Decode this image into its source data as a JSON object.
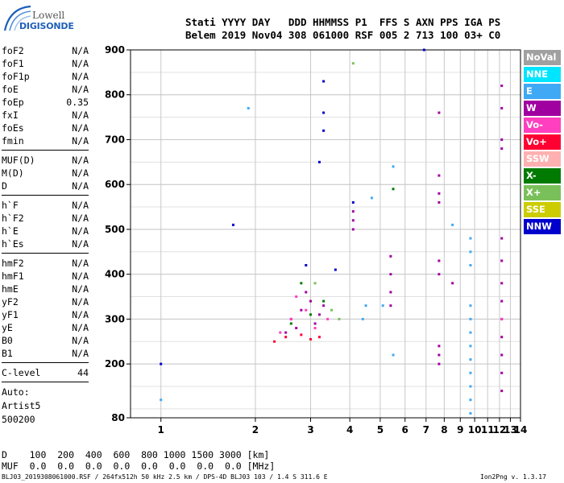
{
  "logo": {
    "brand": "Lowell",
    "product": "DIGISONDE"
  },
  "header": {
    "line1": "Stati YYYY DAY   DDD HHMMSS P1  FFS S AXN PPS IGA PS",
    "line2": "Belem 2019 Nov04 308 061000 RSF 005 2 713 100 03+ C0"
  },
  "params": [
    {
      "name": "foF2",
      "value": "N/A"
    },
    {
      "name": "foF1",
      "value": "N/A"
    },
    {
      "name": "foF1p",
      "value": "N/A"
    },
    {
      "name": "foE",
      "value": "N/A"
    },
    {
      "name": "foEp",
      "value": "0.35"
    },
    {
      "name": "fxI",
      "value": "N/A"
    },
    {
      "name": "foEs",
      "value": "N/A"
    },
    {
      "name": "fmin",
      "value": "N/A"
    },
    {
      "name": "MUF(D)",
      "value": "N/A"
    },
    {
      "name": "M(D)",
      "value": "N/A"
    },
    {
      "name": "D",
      "value": "N/A"
    },
    {
      "name": "h`F",
      "value": "N/A"
    },
    {
      "name": "h`F2",
      "value": "N/A"
    },
    {
      "name": "h`E",
      "value": "N/A"
    },
    {
      "name": "h`Es",
      "value": "N/A"
    },
    {
      "name": "hmF2",
      "value": "N/A"
    },
    {
      "name": "hmF1",
      "value": "N/A"
    },
    {
      "name": "hmE",
      "value": "N/A"
    },
    {
      "name": "yF2",
      "value": "N/A"
    },
    {
      "name": "yF1",
      "value": "N/A"
    },
    {
      "name": "yE",
      "value": "N/A"
    },
    {
      "name": "B0",
      "value": "N/A"
    },
    {
      "name": "B1",
      "value": "N/A"
    },
    {
      "name": "C-level",
      "value": "44"
    }
  ],
  "auto": {
    "line1": "Auto:",
    "line2": "Artist5",
    "line3": "500200"
  },
  "legend": [
    {
      "label": "NoVal",
      "color": "#a0a0a0"
    },
    {
      "label": "NNE",
      "color": "#00e5ff"
    },
    {
      "label": "E",
      "color": "#3fa9f5"
    },
    {
      "label": "W",
      "color": "#a000a0"
    },
    {
      "label": "Vo-",
      "color": "#ff3fbf"
    },
    {
      "label": "Vo+",
      "color": "#ff0033"
    },
    {
      "label": "SSW",
      "color": "#ffb0b0"
    },
    {
      "label": "X-",
      "color": "#007a00"
    },
    {
      "label": "X+",
      "color": "#7ac05a"
    },
    {
      "label": "SSE",
      "color": "#cccc00"
    },
    {
      "label": "NNW",
      "color": "#0000cc"
    }
  ],
  "bottom": {
    "d_row": "D    100  200  400  600  800 1000 1500 3000 [km]",
    "muf_row": "MUF  0.0  0.0  0.0  0.0  0.0  0.0  0.0  0.0 [MHz]"
  },
  "footer": {
    "left": "BLJ03_2019308061000.RSF / 264fx512h 50 kHz 2.5 km / DPS-4D BLJ03 103 / 1.4 S 311.6 E",
    "right": "Ion2Png v. 1.3.17"
  },
  "chart_data": {
    "type": "scatter",
    "title": "",
    "xlabel": "",
    "ylabel": "",
    "xlim": [
      0.8,
      14
    ],
    "ylim": [
      80,
      900
    ],
    "x_ticks": [
      1,
      2,
      3,
      4,
      5,
      6,
      7,
      8,
      9,
      10,
      11,
      12,
      13,
      14
    ],
    "y_ticks": [
      80,
      200,
      300,
      400,
      500,
      600,
      700,
      800,
      900
    ],
    "grid": true,
    "legend_position": "right",
    "notes_series": "echo clusters estimated from image",
    "series": [
      {
        "name": "W",
        "points": [
          [
            2.6,
            300
          ],
          [
            2.8,
            320
          ],
          [
            3.0,
            340
          ],
          [
            2.7,
            280
          ],
          [
            3.1,
            290
          ],
          [
            2.5,
            270
          ],
          [
            3.2,
            310
          ],
          [
            2.9,
            360
          ],
          [
            3.3,
            330
          ],
          [
            4.1,
            520
          ],
          [
            4.1,
            540
          ],
          [
            4.1,
            500
          ],
          [
            5.4,
            440
          ],
          [
            5.4,
            400
          ],
          [
            5.4,
            360
          ],
          [
            5.4,
            330
          ],
          [
            7.7,
            620
          ],
          [
            7.7,
            580
          ],
          [
            7.7,
            560
          ],
          [
            7.7,
            430
          ],
          [
            7.7,
            400
          ],
          [
            7.7,
            240
          ],
          [
            7.7,
            220
          ],
          [
            7.7,
            200
          ],
          [
            12.2,
            480
          ],
          [
            12.2,
            430
          ],
          [
            12.2,
            380
          ],
          [
            12.2,
            340
          ],
          [
            12.2,
            300
          ],
          [
            12.2,
            260
          ],
          [
            12.2,
            220
          ],
          [
            12.2,
            180
          ],
          [
            12.2,
            140
          ],
          [
            12.2,
            700
          ],
          [
            12.2,
            680
          ],
          [
            12.2,
            820
          ],
          [
            12.2,
            770
          ],
          [
            7.7,
            760
          ],
          [
            8.5,
            380
          ]
        ]
      },
      {
        "name": "E",
        "points": [
          [
            9.7,
            480
          ],
          [
            9.7,
            450
          ],
          [
            9.7,
            420
          ],
          [
            9.7,
            330
          ],
          [
            9.7,
            300
          ],
          [
            9.7,
            270
          ],
          [
            9.7,
            240
          ],
          [
            9.7,
            210
          ],
          [
            9.7,
            180
          ],
          [
            9.7,
            150
          ],
          [
            9.7,
            120
          ],
          [
            9.7,
            90
          ],
          [
            4.5,
            330
          ],
          [
            4.4,
            300
          ],
          [
            5.1,
            330
          ],
          [
            5.5,
            220
          ],
          [
            1.9,
            770
          ],
          [
            1.0,
            120
          ],
          [
            5.5,
            640
          ],
          [
            8.5,
            510
          ],
          [
            4.7,
            570
          ]
        ]
      },
      {
        "name": "Vo-",
        "points": [
          [
            2.4,
            270
          ],
          [
            2.6,
            300
          ],
          [
            2.9,
            320
          ],
          [
            3.1,
            280
          ],
          [
            3.4,
            300
          ],
          [
            2.7,
            350
          ],
          [
            12.2,
            300
          ]
        ]
      },
      {
        "name": "Vo+",
        "points": [
          [
            2.3,
            250
          ],
          [
            2.5,
            260
          ],
          [
            2.8,
            265
          ],
          [
            3.0,
            255
          ],
          [
            3.2,
            260
          ]
        ]
      },
      {
        "name": "X-",
        "points": [
          [
            2.6,
            290
          ],
          [
            3.0,
            310
          ],
          [
            3.3,
            340
          ],
          [
            2.8,
            380
          ],
          [
            5.5,
            590
          ]
        ]
      },
      {
        "name": "X+",
        "points": [
          [
            3.5,
            320
          ],
          [
            3.7,
            300
          ],
          [
            3.1,
            380
          ],
          [
            4.1,
            870
          ]
        ]
      },
      {
        "name": "NNW",
        "points": [
          [
            3.3,
            830
          ],
          [
            3.3,
            760
          ],
          [
            3.2,
            650
          ],
          [
            3.3,
            720
          ],
          [
            4.1,
            560
          ],
          [
            2.9,
            420
          ],
          [
            3.6,
            410
          ],
          [
            1.7,
            510
          ],
          [
            1.0,
            200
          ],
          [
            6.9,
            900
          ]
        ]
      }
    ]
  }
}
